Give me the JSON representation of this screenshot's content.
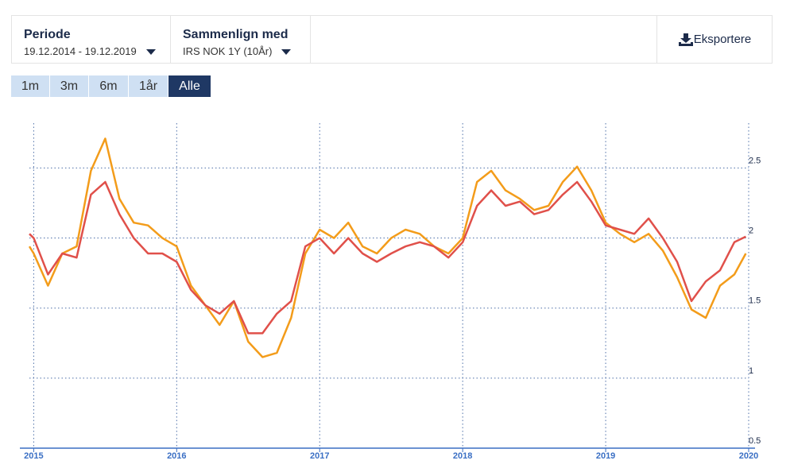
{
  "toolbar": {
    "period": {
      "label": "Periode",
      "value": "19.12.2014 - 19.12.2019"
    },
    "compare": {
      "label": "Sammenlign med",
      "value": "IRS NOK 1Y (10År)"
    },
    "export": "Eksportere"
  },
  "range_buttons": [
    "1m",
    "3m",
    "6m",
    "1år",
    "Alle"
  ],
  "active_range_index": 4,
  "chart_data": {
    "type": "line",
    "x": [
      2014.97,
      2015.0,
      2015.1,
      2015.2,
      2015.3,
      2015.4,
      2015.5,
      2015.6,
      2015.7,
      2015.8,
      2015.9,
      2016.0,
      2016.1,
      2016.2,
      2016.3,
      2016.4,
      2016.5,
      2016.6,
      2016.7,
      2016.8,
      2016.9,
      2017.0,
      2017.1,
      2017.2,
      2017.3,
      2017.4,
      2017.5,
      2017.6,
      2017.7,
      2017.8,
      2017.9,
      2018.0,
      2018.1,
      2018.2,
      2018.3,
      2018.4,
      2018.5,
      2018.6,
      2018.7,
      2018.8,
      2018.9,
      2019.0,
      2019.1,
      2019.2,
      2019.3,
      2019.4,
      2019.5,
      2019.6,
      2019.7,
      2019.8,
      2019.9,
      2019.98
    ],
    "series": [
      {
        "color": "#f39c1a",
        "values": [
          1.94,
          1.89,
          1.66,
          1.89,
          1.94,
          2.48,
          2.71,
          2.28,
          2.11,
          2.09,
          2.0,
          1.94,
          1.66,
          1.52,
          1.38,
          1.55,
          1.26,
          1.15,
          1.18,
          1.43,
          1.89,
          2.06,
          2.0,
          2.11,
          1.94,
          1.89,
          2.0,
          2.06,
          2.03,
          1.94,
          1.89,
          2.0,
          2.4,
          2.48,
          2.34,
          2.28,
          2.2,
          2.23,
          2.4,
          2.51,
          2.34,
          2.11,
          2.03,
          1.97,
          2.03,
          1.91,
          1.72,
          1.49,
          1.43,
          1.66,
          1.74,
          1.89
        ]
      },
      {
        "color": "#e0504a",
        "values": [
          2.03,
          2.0,
          1.74,
          1.89,
          1.86,
          2.31,
          2.4,
          2.17,
          2.0,
          1.89,
          1.89,
          1.83,
          1.63,
          1.52,
          1.46,
          1.55,
          1.32,
          1.32,
          1.46,
          1.55,
          1.94,
          2.0,
          1.89,
          2.0,
          1.89,
          1.83,
          1.89,
          1.94,
          1.97,
          1.94,
          1.86,
          1.97,
          2.23,
          2.34,
          2.23,
          2.26,
          2.17,
          2.2,
          2.31,
          2.4,
          2.26,
          2.09,
          2.06,
          2.03,
          2.14,
          2.0,
          1.83,
          1.55,
          1.69,
          1.77,
          1.97,
          2.01
        ]
      }
    ],
    "xlim": [
      2014.97,
      2020
    ],
    "xticks": [
      2015,
      2016,
      2017,
      2018,
      2019,
      2020
    ],
    "ylim": [
      0.5,
      2.82
    ],
    "yticks": [
      0.5,
      1,
      1.5,
      2,
      2.5
    ],
    "grid": true,
    "axis_color": "#3a6fc4"
  }
}
